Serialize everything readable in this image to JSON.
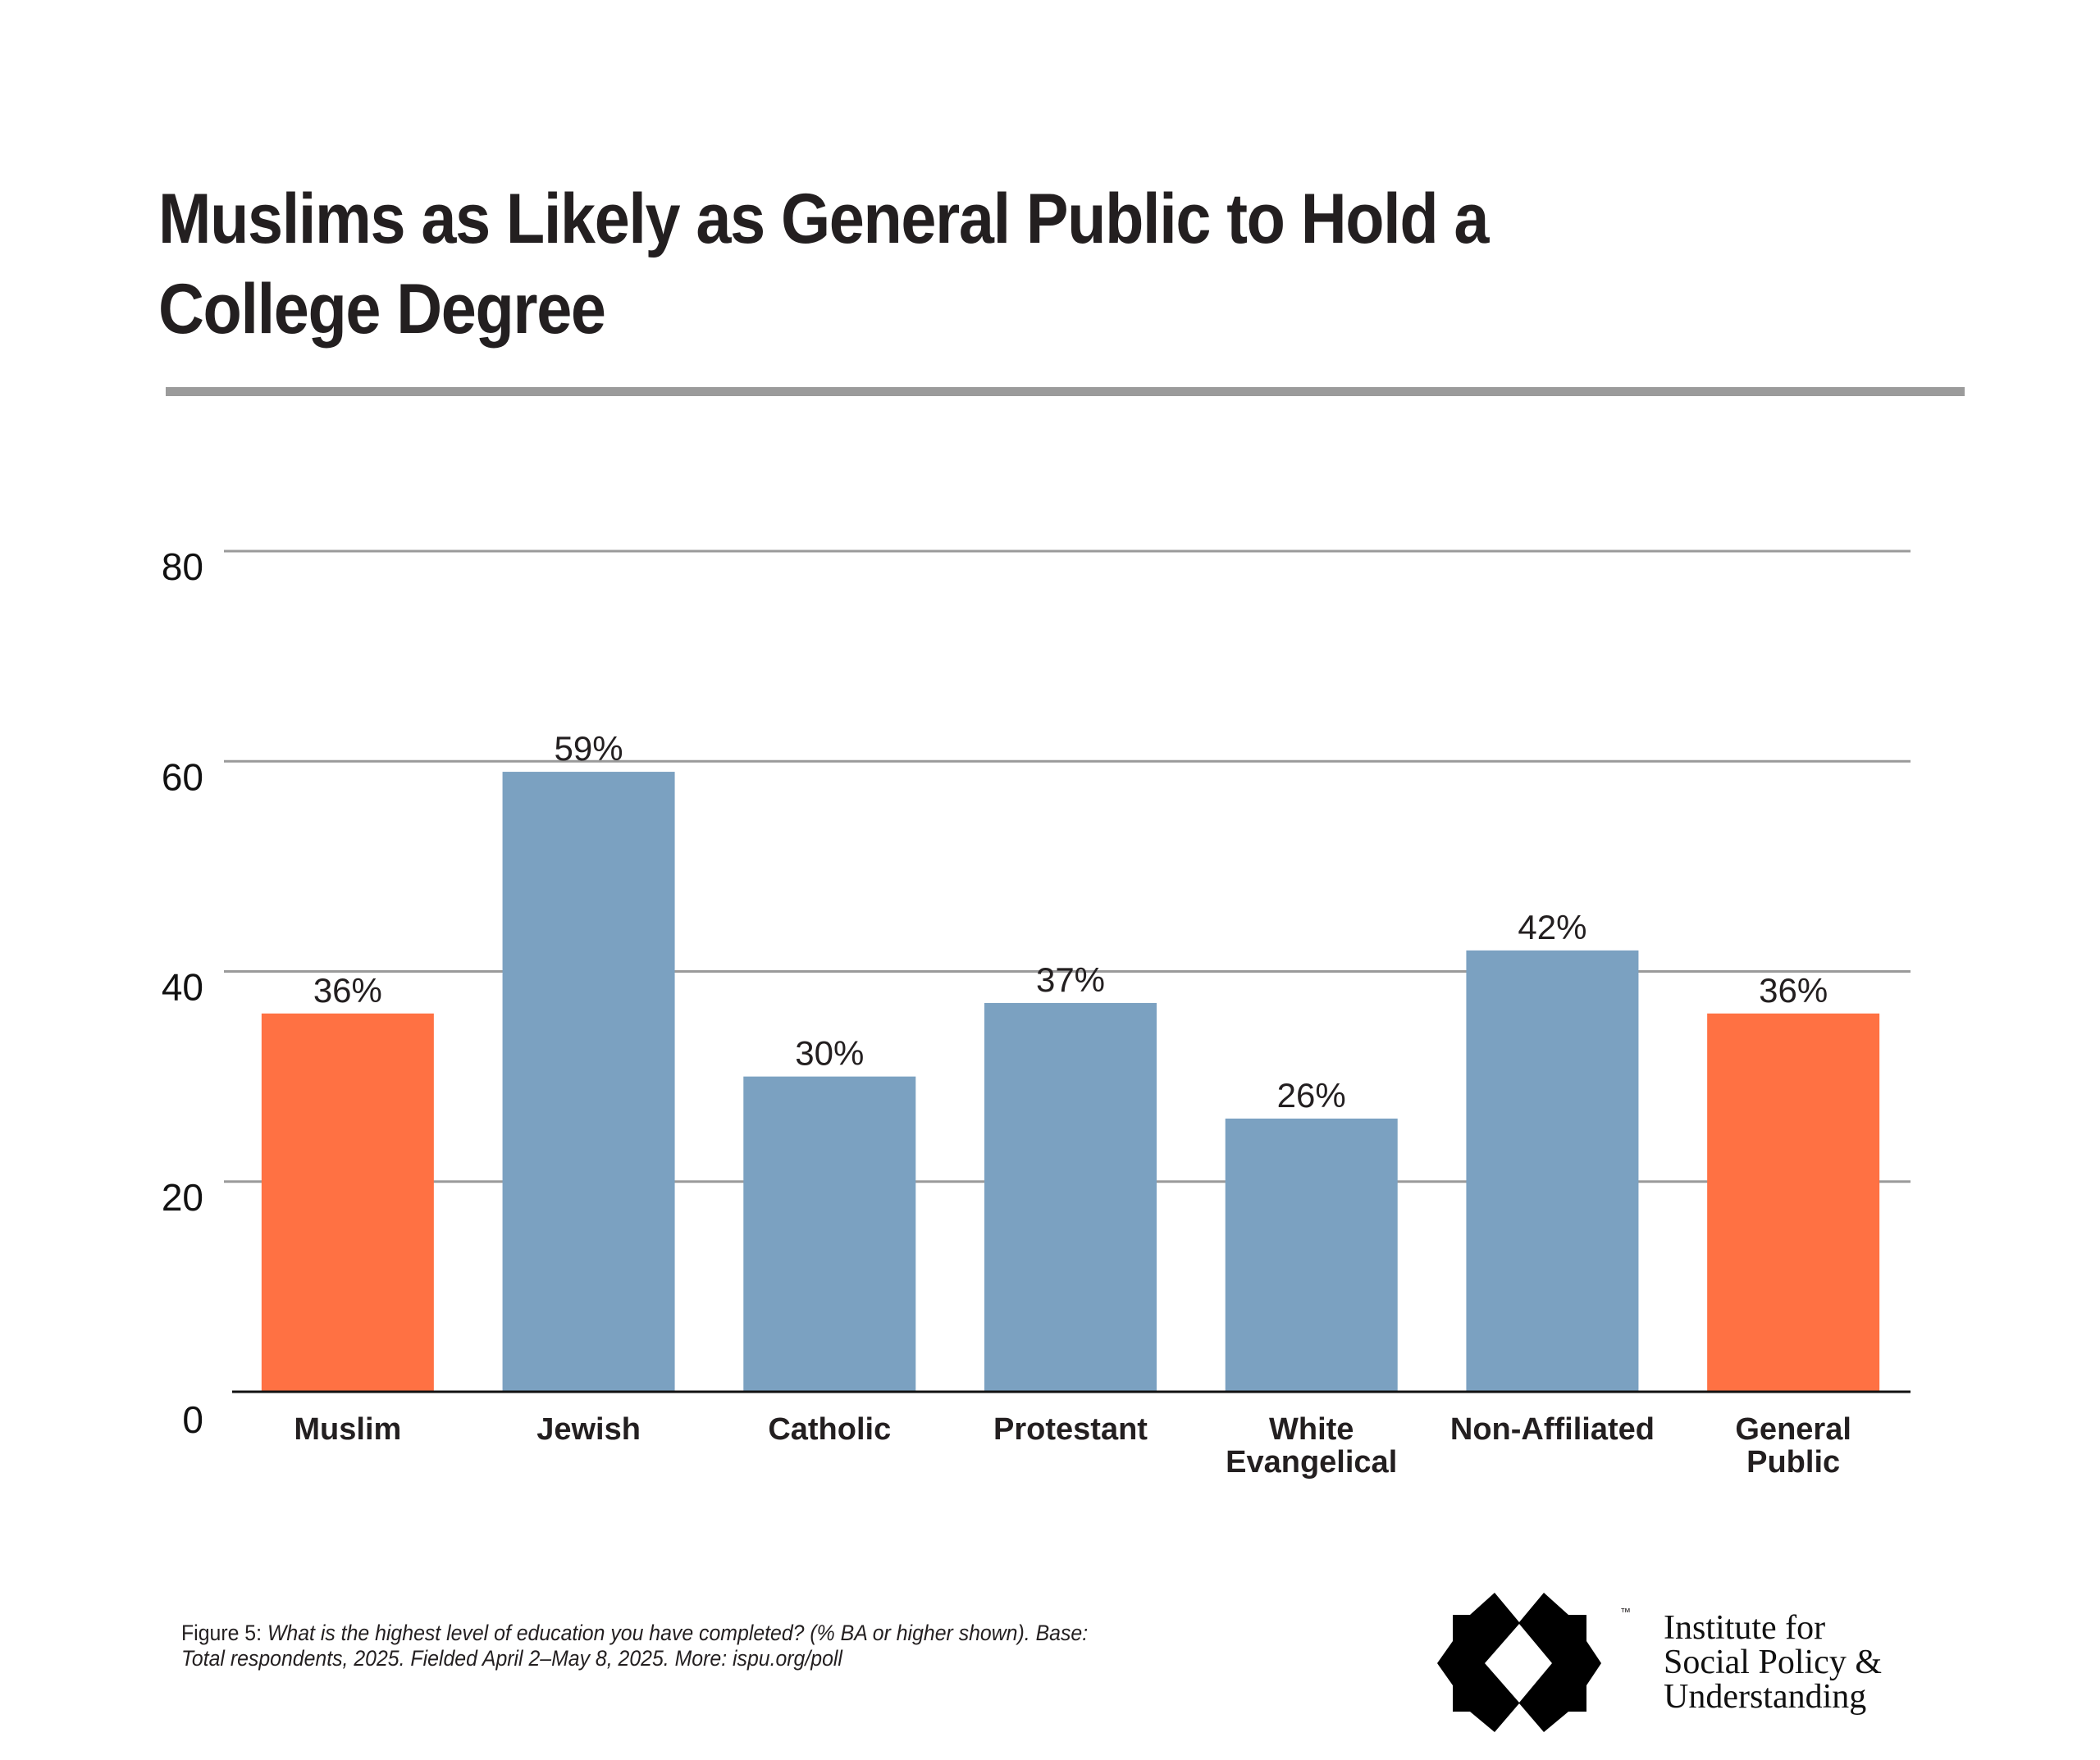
{
  "title": {
    "line1": "Muslims as Likely as General Public to Hold a",
    "line2": "College Degree"
  },
  "chart_data": {
    "type": "bar",
    "title": "Muslims as Likely as General Public to Hold a College Degree",
    "xlabel": "",
    "ylabel": "",
    "ylim": [
      0,
      80
    ],
    "yticks": [
      0,
      20,
      40,
      60,
      80
    ],
    "ytick_labels": [
      "0",
      "20",
      "40",
      "60",
      "80"
    ],
    "grid": true,
    "legend": "none",
    "categories": [
      "Muslim",
      "Jewish",
      "Catholic",
      "Protestant",
      "White Evangelical",
      "Non-Affiliated",
      "General Public"
    ],
    "category_lines": [
      [
        "Muslim"
      ],
      [
        "Jewish"
      ],
      [
        "Catholic"
      ],
      [
        "Protestant"
      ],
      [
        "White",
        "Evangelical"
      ],
      [
        "Non-Affiliated"
      ],
      [
        "General",
        "Public"
      ]
    ],
    "values": [
      36,
      59,
      30,
      37,
      26,
      42,
      36
    ],
    "data_labels": [
      "36%",
      "59%",
      "30%",
      "37%",
      "26%",
      "42%",
      "36%"
    ],
    "highlight": [
      true,
      false,
      false,
      false,
      false,
      false,
      true
    ],
    "colors": {
      "highlight": "#ff7143",
      "default": "#7ba1c1",
      "grid": "#9a9a9a",
      "axis": "#111111",
      "text": "#231f20"
    }
  },
  "footer": {
    "figure_label": "Figure 5:",
    "caption_line1": "What is the highest level of education you have completed? (% BA or higher shown). Base:",
    "caption_line2": "Total respondents, 2025. Fielded April 2–May 8, 2025. More: ispu.org/poll"
  },
  "logo": {
    "icon": "ispu-star-icon",
    "trademark": "™",
    "line1": "Institute for",
    "line2": "Social Policy &",
    "line3": "Understanding"
  }
}
